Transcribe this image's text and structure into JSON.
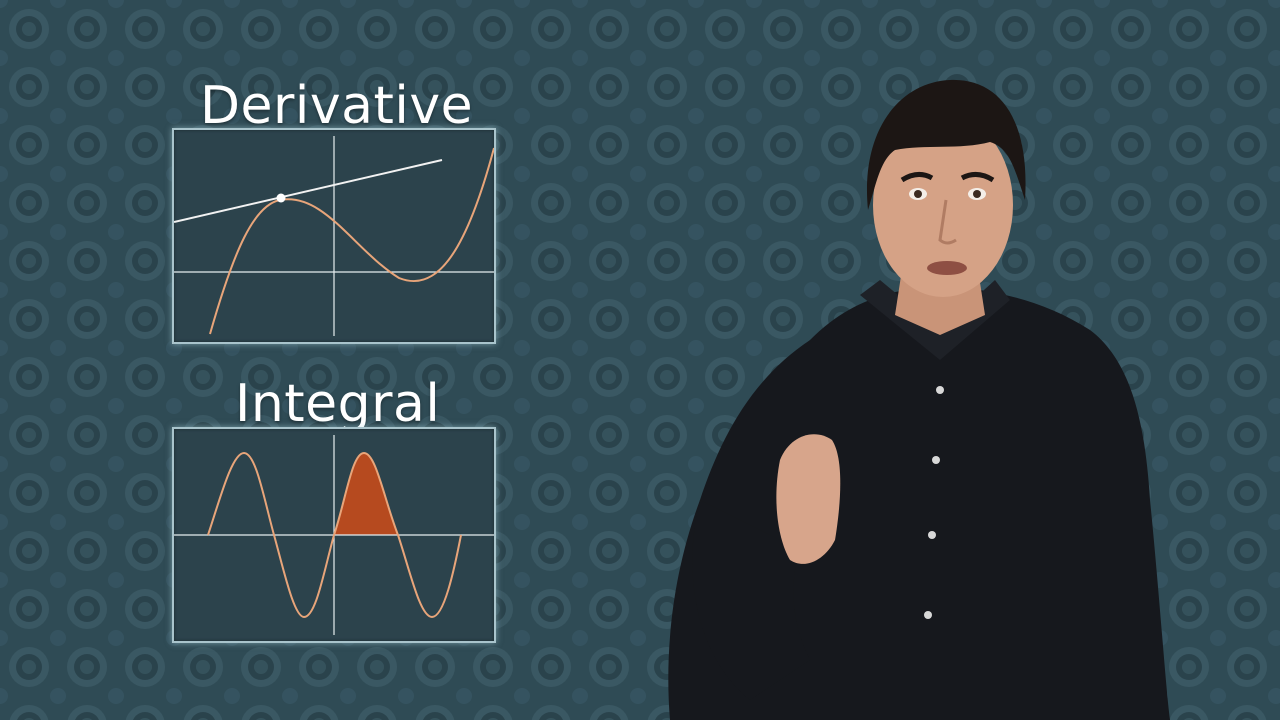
{
  "derivative_panel": {
    "title": "Derivative",
    "curve_color": "#e8a57a",
    "tangent_color": "#f2f2f2"
  },
  "integral_panel": {
    "title": "Integral",
    "curve_color": "#e8a57a",
    "area_color": "#b64a1f"
  },
  "colors": {
    "background": "#2f4b55",
    "panel_fill": "#2c434c",
    "panel_border": "#a9c4cc",
    "shirt": "#16181d"
  }
}
